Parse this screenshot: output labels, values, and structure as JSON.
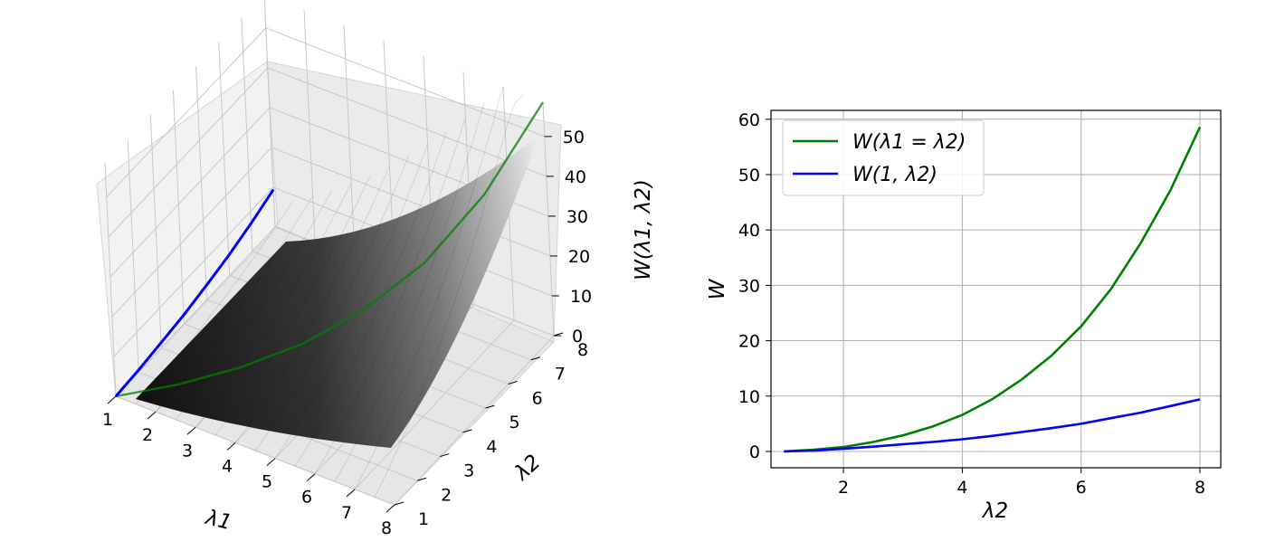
{
  "chart_data": [
    {
      "type": "surface3d",
      "title": "",
      "xlabel": "λ1",
      "ylabel": "λ2",
      "zlabel": "W(λ1, λ2)",
      "x_ticks": [
        1,
        2,
        3,
        4,
        5,
        6,
        7,
        8
      ],
      "y_ticks": [
        1,
        2,
        3,
        4,
        5,
        6,
        7,
        8
      ],
      "z_ticks": [
        0,
        10,
        20,
        30,
        40,
        50
      ],
      "xlim": [
        1,
        8
      ],
      "ylim": [
        1,
        8
      ],
      "zlim": [
        0,
        58.6
      ],
      "surface_color": "gray",
      "grid": true,
      "series": [
        {
          "color": "#008000",
          "x": [
            1,
            2,
            3,
            4,
            5,
            6,
            7,
            8
          ],
          "y": [
            1,
            2,
            3,
            4,
            5,
            6,
            7,
            8
          ],
          "values": [
            0,
            0.8,
            2.9,
            6.6,
            13.0,
            22.6,
            37.6,
            58.6
          ]
        },
        {
          "color": "#0000ff",
          "x": [
            1,
            1,
            1,
            1,
            1,
            1,
            1,
            1
          ],
          "y": [
            1,
            2,
            3,
            4,
            5,
            6,
            7,
            8
          ],
          "values": [
            0,
            0.5,
            1.3,
            2.2,
            3.5,
            5.0,
            7.0,
            9.4
          ]
        }
      ]
    },
    {
      "type": "line",
      "title": "",
      "xlabel": "λ2",
      "ylabel": "W",
      "xlim": [
        0.78,
        8.35
      ],
      "ylim": [
        -2.95,
        61.6
      ],
      "x_ticks": [
        2,
        4,
        6,
        8
      ],
      "y_ticks": [
        0,
        10,
        20,
        30,
        40,
        50,
        60
      ],
      "grid": true,
      "legend_position": "top-left",
      "x": [
        1,
        1.5,
        2,
        2.5,
        3,
        3.5,
        4,
        4.5,
        5,
        5.5,
        6,
        6.5,
        7,
        7.5,
        8
      ],
      "series": [
        {
          "name": "W(λ1 = λ2)",
          "color": "#008000",
          "values": [
            0,
            0.3,
            0.8,
            1.7,
            2.9,
            4.5,
            6.6,
            9.4,
            13.0,
            17.3,
            22.6,
            29.3,
            37.6,
            47.1,
            58.6
          ]
        },
        {
          "name": "W(1, λ2)",
          "color": "#0000ff",
          "values": [
            0,
            0.15,
            0.5,
            0.85,
            1.3,
            1.7,
            2.2,
            2.8,
            3.5,
            4.2,
            5.0,
            6.0,
            7.0,
            8.2,
            9.4
          ]
        }
      ]
    }
  ]
}
